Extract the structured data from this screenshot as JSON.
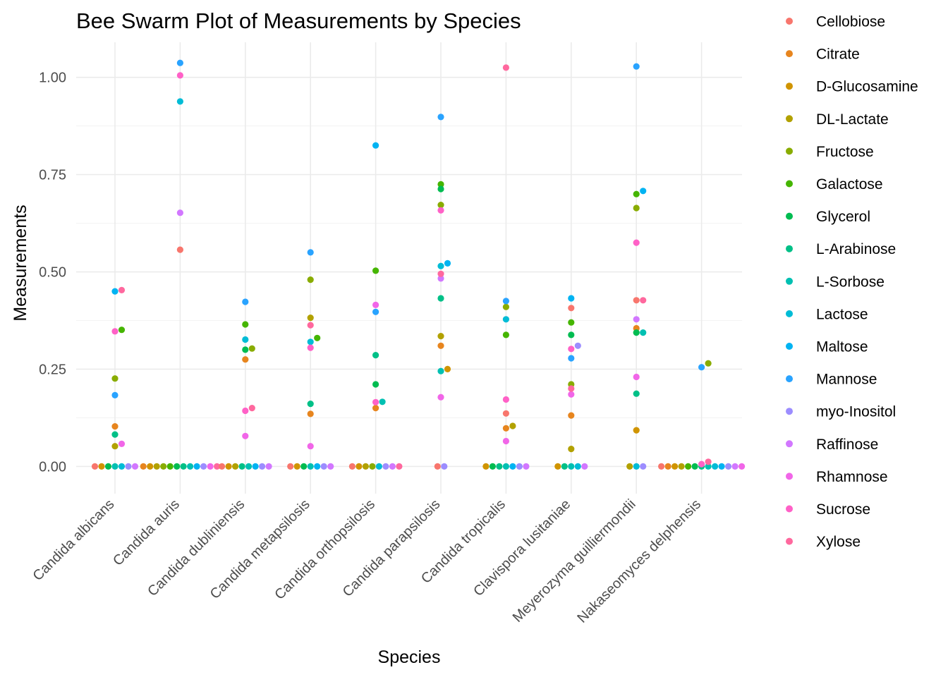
{
  "chart_data": {
    "type": "scatter",
    "subtype": "beeswarm",
    "title": "Bee Swarm Plot of Measurements by Species",
    "xlabel": "Species",
    "ylabel": "Measurements",
    "ylim": [
      -0.07,
      1.09
    ],
    "yticks": [
      0,
      0.25,
      0.5,
      0.75,
      1.0
    ],
    "ytick_labels": [
      "0.00",
      "0.25",
      "0.50",
      "0.75",
      "1.00"
    ],
    "grid": true,
    "legend_position": "right",
    "categories": [
      "Candida albicans",
      "Candida auris",
      "Candida dubliniensis",
      "Candida metapsilosis",
      "Candida orthopsilosis",
      "Candida parapsilosis",
      "Candida tropicalis",
      "Clavispora lusitaniae",
      "Meyerozyma guilliermondii",
      "Nakaseomyces delphensis"
    ],
    "series": [
      {
        "name": "Cellobiose",
        "color": "#F8766D",
        "values": [
          0,
          0.557,
          0,
          0,
          0,
          0,
          0.136,
          0.407,
          0.427,
          0
        ]
      },
      {
        "name": "Citrate",
        "color": "#E7851E",
        "values": [
          0.103,
          0,
          0.275,
          0.135,
          0.15,
          0.31,
          0.098,
          0.131,
          0.355,
          0
        ]
      },
      {
        "name": "D-Glucosamine",
        "color": "#D09400",
        "values": [
          0,
          0,
          0,
          0,
          0,
          0.25,
          0,
          0,
          0.093,
          0
        ]
      },
      {
        "name": "DL-Lactate",
        "color": "#B2A100",
        "values": [
          0.052,
          0,
          0,
          0.382,
          0,
          0.335,
          0.104,
          0.045,
          0,
          0
        ]
      },
      {
        "name": "Fructose",
        "color": "#89AC00",
        "values": [
          0.226,
          0,
          0.303,
          0.48,
          0,
          0.672,
          0.41,
          0.211,
          0.664,
          0.265
        ]
      },
      {
        "name": "Galactose",
        "color": "#45B500",
        "values": [
          0.351,
          0,
          0.365,
          0.33,
          0.503,
          0.725,
          0.338,
          0.37,
          0.7,
          0
        ]
      },
      {
        "name": "Glycerol",
        "color": "#00BC51",
        "values": [
          0,
          0,
          0.3,
          0,
          0.211,
          0.713,
          0,
          0.338,
          0.344,
          0
        ]
      },
      {
        "name": "L-Arabinose",
        "color": "#00C087",
        "values": [
          0.082,
          0,
          0,
          0.161,
          0.286,
          0.432,
          0,
          0,
          0.187,
          0
        ]
      },
      {
        "name": "L-Sorbose",
        "color": "#00C0B2",
        "values": [
          0,
          0,
          0,
          0,
          0.166,
          0.245,
          0,
          0,
          0.344,
          0
        ]
      },
      {
        "name": "Lactose",
        "color": "#00BCD6",
        "values": [
          0,
          0.938,
          0.326,
          0.32,
          0,
          0.515,
          0.378,
          0,
          0,
          0
        ]
      },
      {
        "name": "Maltose",
        "color": "#00B3F2",
        "values": [
          0.45,
          0,
          0,
          0,
          0.825,
          0.522,
          0,
          0.432,
          0.708,
          0
        ]
      },
      {
        "name": "Mannose",
        "color": "#29A3FF",
        "values": [
          0.183,
          1.037,
          0.423,
          0.55,
          0.397,
          0.898,
          0.425,
          0.278,
          1.028,
          0.255
        ]
      },
      {
        "name": "myo-Inositol",
        "color": "#9C8DFF",
        "values": [
          0,
          0,
          0,
          0,
          0,
          0,
          0,
          0.31,
          0,
          0
        ]
      },
      {
        "name": "Raffinose",
        "color": "#D277FF",
        "values": [
          0,
          0.652,
          0,
          0,
          0,
          0.483,
          0,
          0,
          0.378,
          0
        ]
      },
      {
        "name": "Rhamnose",
        "color": "#F166E8",
        "values": [
          0.058,
          0,
          0.078,
          0.052,
          0.415,
          0.178,
          0.065,
          0.185,
          0.23,
          0
        ]
      },
      {
        "name": "Sucrose",
        "color": "#FF61C7",
        "values": [
          0.347,
          1.005,
          0.143,
          0.305,
          0.165,
          0.658,
          0.172,
          0.302,
          0.575,
          0.006
        ]
      },
      {
        "name": "Xylose",
        "color": "#FF689E",
        "values": [
          0.453,
          0,
          0.15,
          0.363,
          0,
          0.495,
          1.025,
          0.2,
          0.427,
          0.012
        ]
      }
    ]
  }
}
